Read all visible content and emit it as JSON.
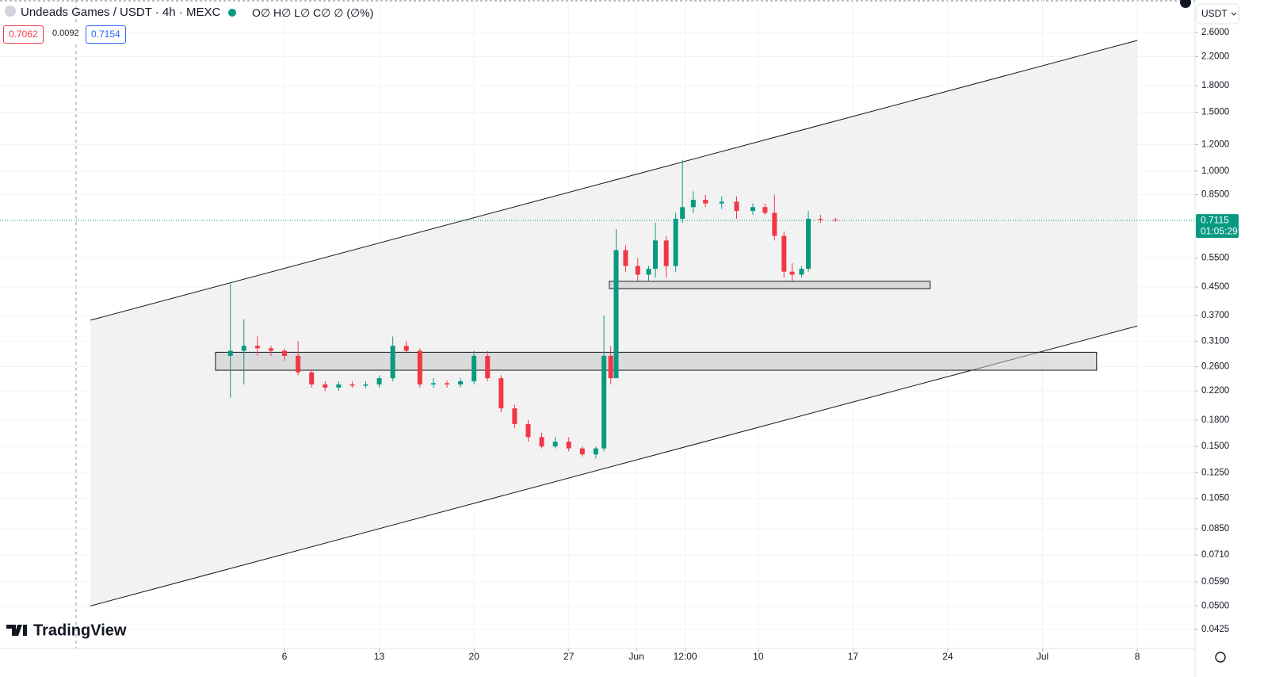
{
  "chart_data": {
    "type": "candlestick",
    "title": "Undeads Games / USDT · 4h · MEXC",
    "ohlc_header": "O∅ H∅ L∅ C∅ ∅ (∅%)",
    "bid": "0.7062",
    "spread": "0.0092",
    "ask": "0.7154",
    "currency": "USDT",
    "logo": "TradingView",
    "last_price": 0.7115,
    "countdown": "01:05:29",
    "log_scale": true,
    "grid": true,
    "up_color": "#089981",
    "down_color": "#f23645",
    "x": [
      2,
      3,
      4,
      5,
      6,
      7,
      8,
      9,
      10,
      11,
      12,
      13,
      14,
      15,
      16,
      17,
      18,
      19,
      20,
      21,
      22,
      23,
      24,
      25,
      26,
      27,
      28,
      29,
      29.6,
      30.1,
      30.5,
      31.2,
      32.1,
      32.9,
      33.4,
      34.2,
      34.9,
      35.4,
      36.2,
      37.1,
      38.3,
      39.4,
      40.6,
      41.5,
      42.2,
      42.9,
      43.5,
      44.2,
      44.7,
      45.6,
      46.7
    ],
    "open": [
      0.28,
      0.29,
      0.3,
      0.295,
      0.29,
      0.28,
      0.25,
      0.23,
      0.225,
      0.23,
      0.228,
      0.23,
      0.24,
      0.3,
      0.29,
      0.23,
      0.232,
      0.23,
      0.235,
      0.28,
      0.24,
      0.195,
      0.175,
      0.16,
      0.15,
      0.155,
      0.148,
      0.142,
      0.148,
      0.28,
      0.24,
      0.58,
      0.52,
      0.49,
      0.51,
      0.62,
      0.52,
      0.72,
      0.78,
      0.82,
      0.8,
      0.81,
      0.76,
      0.78,
      0.75,
      0.64,
      0.5,
      0.49,
      0.51,
      0.72,
      0.715
    ],
    "high": [
      0.46,
      0.36,
      0.32,
      0.3,
      0.295,
      0.31,
      0.255,
      0.235,
      0.235,
      0.235,
      0.235,
      0.245,
      0.32,
      0.31,
      0.295,
      0.24,
      0.236,
      0.24,
      0.29,
      0.29,
      0.245,
      0.2,
      0.18,
      0.165,
      0.16,
      0.16,
      0.15,
      0.15,
      0.37,
      0.3,
      0.67,
      0.6,
      0.55,
      0.52,
      0.7,
      0.64,
      0.75,
      1.08,
      0.87,
      0.85,
      0.84,
      0.84,
      0.8,
      0.8,
      0.85,
      0.66,
      0.53,
      0.52,
      0.76,
      0.74,
      0.725
    ],
    "low": [
      0.21,
      0.23,
      0.28,
      0.28,
      0.27,
      0.245,
      0.225,
      0.22,
      0.22,
      0.225,
      0.224,
      0.225,
      0.235,
      0.285,
      0.225,
      0.225,
      0.225,
      0.225,
      0.23,
      0.235,
      0.19,
      0.17,
      0.155,
      0.148,
      0.148,
      0.145,
      0.14,
      0.138,
      0.145,
      0.23,
      0.24,
      0.5,
      0.47,
      0.47,
      0.48,
      0.48,
      0.5,
      0.7,
      0.75,
      0.78,
      0.77,
      0.72,
      0.74,
      0.74,
      0.62,
      0.48,
      0.47,
      0.48,
      0.5,
      0.7,
      0.705
    ],
    "close": [
      0.29,
      0.3,
      0.295,
      0.29,
      0.28,
      0.25,
      0.23,
      0.225,
      0.23,
      0.228,
      0.23,
      0.24,
      0.3,
      0.29,
      0.23,
      0.232,
      0.23,
      0.235,
      0.28,
      0.24,
      0.195,
      0.175,
      0.16,
      0.15,
      0.155,
      0.148,
      0.142,
      0.148,
      0.28,
      0.24,
      0.58,
      0.52,
      0.49,
      0.51,
      0.62,
      0.52,
      0.72,
      0.78,
      0.82,
      0.8,
      0.81,
      0.76,
      0.78,
      0.75,
      0.64,
      0.5,
      0.49,
      0.51,
      0.72,
      0.715,
      0.7115
    ],
    "channel": {
      "x": [
        -8.34,
        69
      ],
      "upper": [
        0.358,
        2.46
      ],
      "lower": [
        0.05,
        0.344
      ]
    },
    "zones": [
      {
        "x": [
          0.9,
          66
        ],
        "y": [
          0.2536,
          0.287
        ]
      },
      {
        "x": [
          30,
          53.7
        ],
        "y": [
          0.445,
          0.468
        ]
      }
    ],
    "xlim": [
      -15.02,
      73.27
    ],
    "ylim": [
      0.0373,
      3.25
    ],
    "xticks": [
      6,
      13,
      20,
      27,
      {
        "value": 32,
        "label": "Jun"
      },
      {
        "value": 35.6,
        "label": "12:00"
      },
      {
        "value": 41,
        "label": "10"
      },
      {
        "value": 48,
        "label": "17"
      },
      {
        "value": 55,
        "label": "24"
      },
      {
        "value": 62,
        "label": "Jul"
      },
      {
        "value": 69,
        "label": "8"
      }
    ],
    "yticks": [
      {
        "value": 2.6,
        "label": "2.6000"
      },
      {
        "value": 2.2,
        "label": "2.2000"
      },
      {
        "value": 1.8,
        "label": "1.8000"
      },
      {
        "value": 1.5,
        "label": "1.5000"
      },
      {
        "value": 1.2,
        "label": "1.2000"
      },
      {
        "value": 1.0,
        "label": "1.0000"
      },
      {
        "value": 0.85,
        "label": "0.8500"
      },
      {
        "value": 0.55,
        "label": "0.5500"
      },
      {
        "value": 0.45,
        "label": "0.4500"
      },
      {
        "value": 0.37,
        "label": "0.3700"
      },
      {
        "value": 0.31,
        "label": "0.3100"
      },
      {
        "value": 0.26,
        "label": "0.2600"
      },
      {
        "value": 0.22,
        "label": "0.2200"
      },
      {
        "value": 0.18,
        "label": "0.1800"
      },
      {
        "value": 0.15,
        "label": "0.1500"
      },
      {
        "value": 0.125,
        "label": "0.1250"
      },
      {
        "value": 0.105,
        "label": "0.1050"
      },
      {
        "value": 0.085,
        "label": "0.0850"
      },
      {
        "value": 0.071,
        "label": "0.0710"
      },
      {
        "value": 0.059,
        "label": "0.0590"
      },
      {
        "value": 0.05,
        "label": "0.0500"
      },
      {
        "value": 0.0425,
        "label": "0.0425"
      }
    ]
  }
}
